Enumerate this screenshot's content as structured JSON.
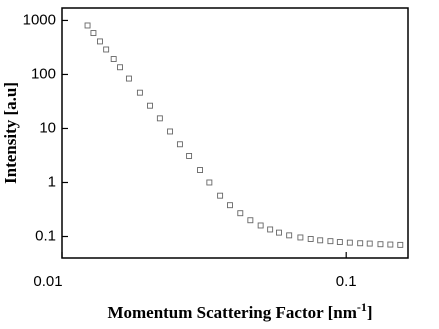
{
  "chart_data": {
    "type": "scatter",
    "log_x": true,
    "log_y": true,
    "x_label": "Momentum Scattering Factor [nm",
    "x_label_sup": "-1",
    "x_label_end": "]",
    "y_label": "Intensity [a.u]",
    "xlim": [
      0.01,
      0.165
    ],
    "ylim": [
      0.04,
      1700
    ],
    "xticks": [
      0.01,
      0.1
    ],
    "yticks": [
      0.1,
      1,
      10,
      100,
      1000
    ],
    "series": [
      {
        "color": "#666666",
        "x": [
          0.0123,
          0.0129,
          0.0136,
          0.0143,
          0.0152,
          0.016,
          0.0172,
          0.0188,
          0.0204,
          0.0221,
          0.024,
          0.026,
          0.028,
          0.0306,
          0.033,
          0.036,
          0.039,
          0.0424,
          0.046,
          0.05,
          0.054,
          0.058,
          0.063,
          0.069,
          0.075,
          0.081,
          0.088,
          0.095,
          0.103,
          0.112,
          0.121,
          0.132,
          0.143,
          0.155
        ],
        "values": [
          807,
          584,
          409,
          290,
          193,
          136,
          84,
          46,
          26.4,
          15.4,
          8.8,
          5.1,
          3.1,
          1.7,
          1.0,
          0.57,
          0.38,
          0.27,
          0.2,
          0.16,
          0.135,
          0.118,
          0.105,
          0.096,
          0.09,
          0.085,
          0.082,
          0.079,
          0.077,
          0.075,
          0.074,
          0.072,
          0.071,
          0.07
        ]
      }
    ]
  }
}
